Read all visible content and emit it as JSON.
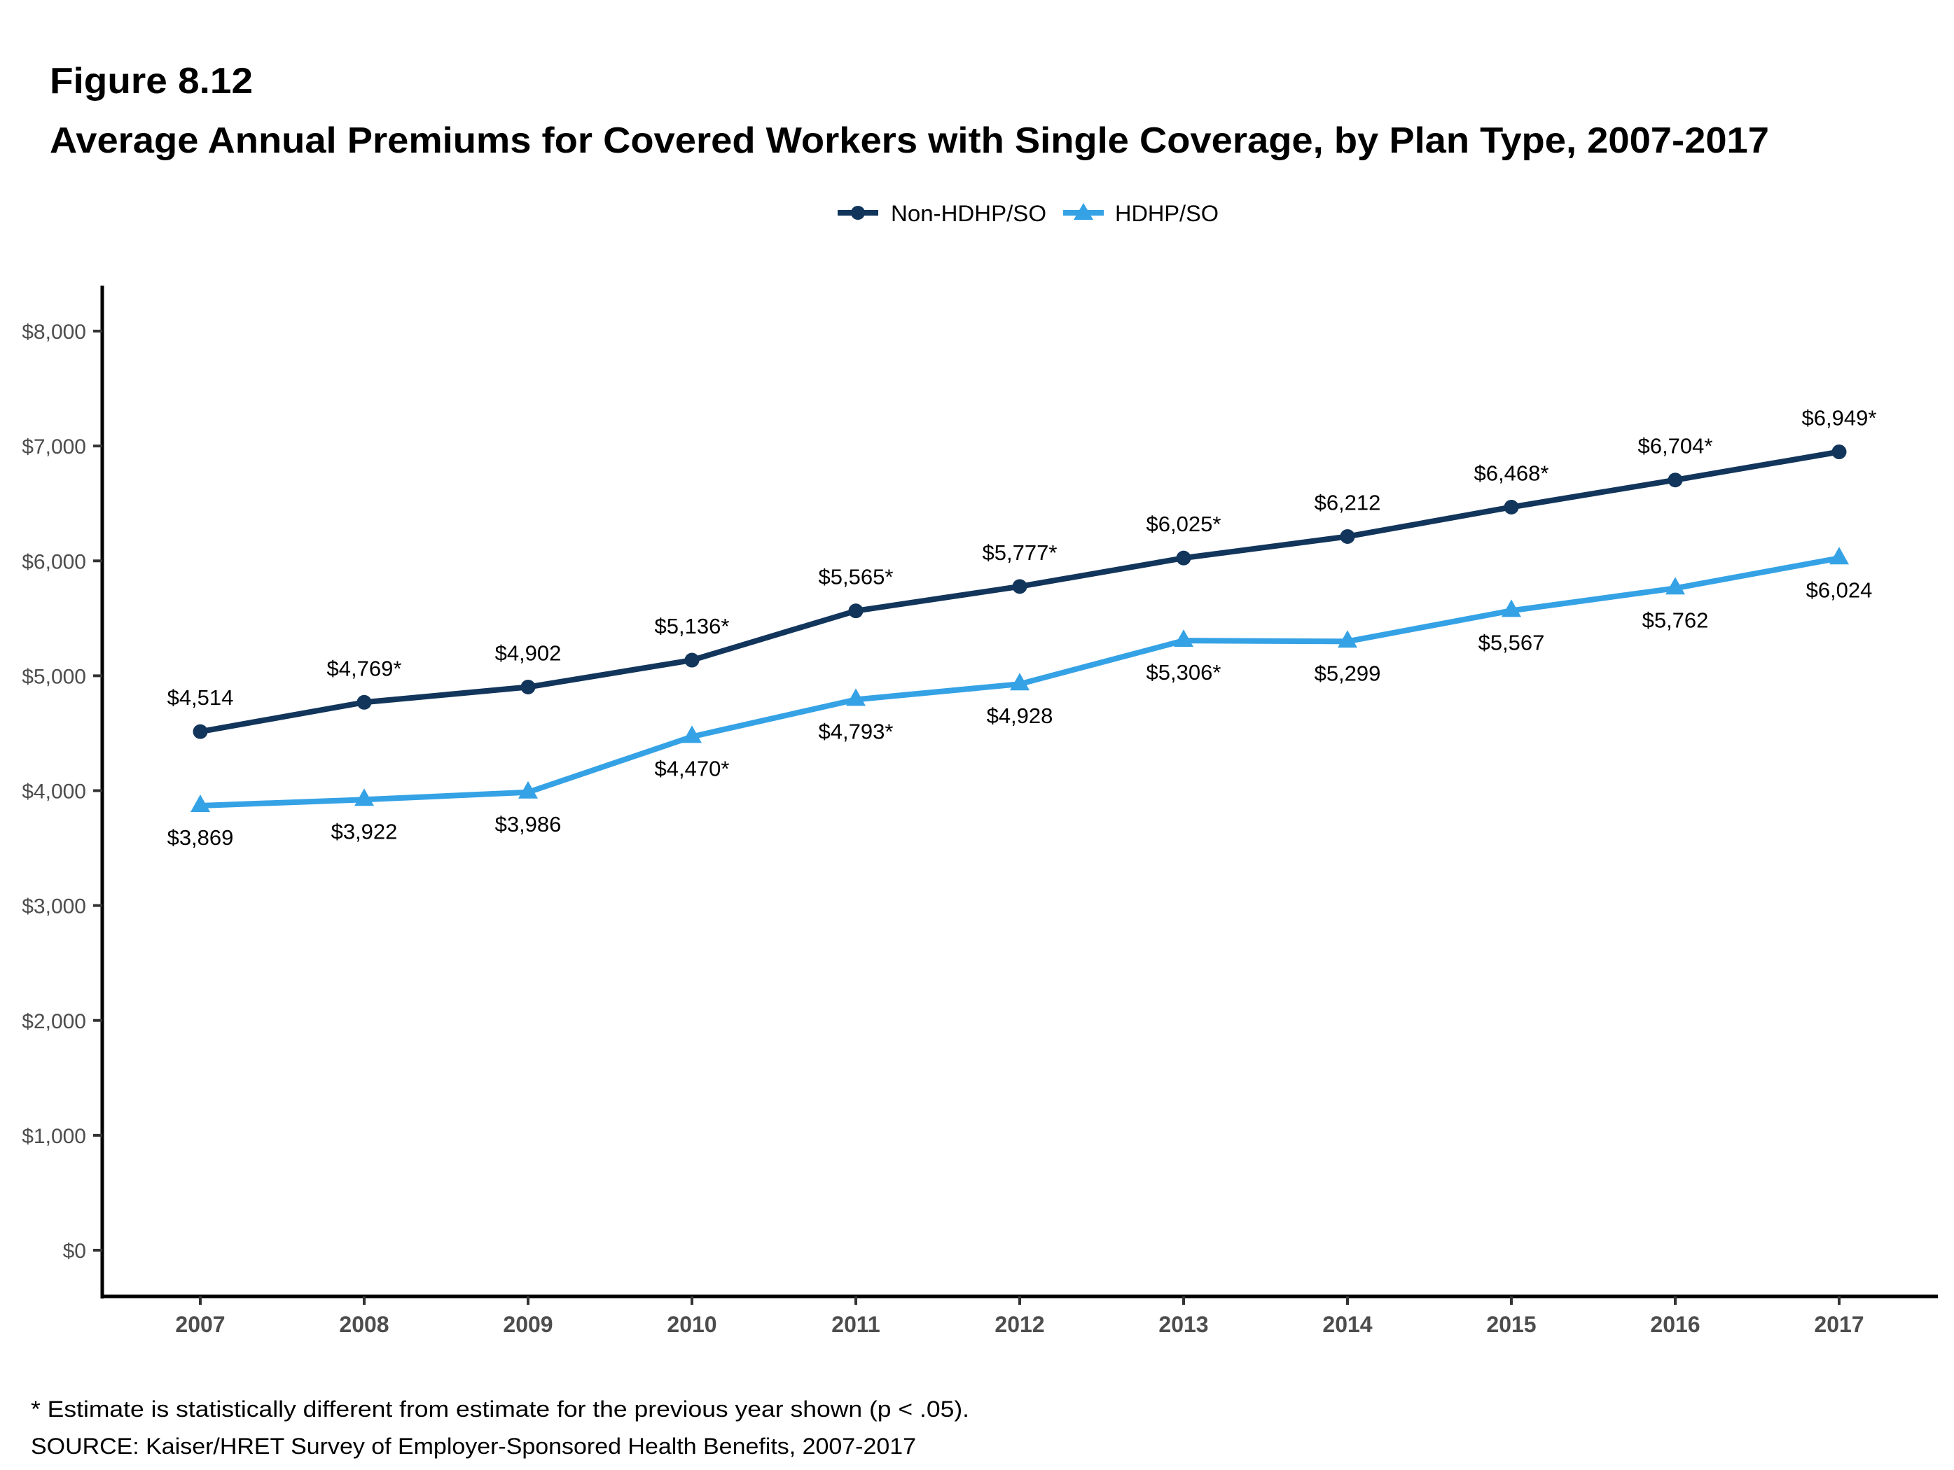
{
  "figure_number": "Figure 8.12",
  "footnote": "* Estimate is statistically different from estimate for the previous year shown (p < .05).",
  "source": "SOURCE: Kaiser/HRET Survey of Employer-Sponsored Health Benefits, 2007-2017",
  "colors": {
    "non_hdhp": "#12355b",
    "hdhp": "#35a2e5",
    "axis": "#000000",
    "tick_text": "#4d4d4d"
  },
  "chart_data": {
    "type": "line",
    "title": "Average Annual Premiums for Covered Workers with Single Coverage, by Plan Type, 2007-2017",
    "xlabel": "",
    "ylabel": "",
    "categories": [
      "2007",
      "2008",
      "2009",
      "2010",
      "2011",
      "2012",
      "2013",
      "2014",
      "2015",
      "2016",
      "2017"
    ],
    "ylim": [
      0,
      8000
    ],
    "yticks": [
      0,
      1000,
      2000,
      3000,
      4000,
      5000,
      6000,
      7000,
      8000
    ],
    "ytick_labels": [
      "$0",
      "$1,000",
      "$2,000",
      "$3,000",
      "$4,000",
      "$5,000",
      "$6,000",
      "$7,000",
      "$8,000"
    ],
    "grid": false,
    "legend_position": "top-center",
    "series": [
      {
        "name": "Non-HDHP/SO",
        "marker": "circle",
        "color": "#12355b",
        "label_position": "above",
        "values": [
          4514,
          4769,
          4902,
          5136,
          5565,
          5777,
          6025,
          6212,
          6468,
          6704,
          6949
        ],
        "labels": [
          "$4,514",
          "$4,769*",
          "$4,902",
          "$5,136*",
          "$5,565*",
          "$5,777*",
          "$6,025*",
          "$6,212",
          "$6,468*",
          "$6,704*",
          "$6,949*"
        ]
      },
      {
        "name": "HDHP/SO",
        "marker": "triangle",
        "color": "#35a2e5",
        "label_position": "below",
        "values": [
          3869,
          3922,
          3986,
          4470,
          4793,
          4928,
          5306,
          5299,
          5567,
          5762,
          6024
        ],
        "labels": [
          "$3,869",
          "$3,922",
          "$3,986",
          "$4,470*",
          "$4,793*",
          "$4,928",
          "$5,306*",
          "$5,299",
          "$5,567",
          "$5,762",
          "$6,024"
        ]
      }
    ]
  }
}
